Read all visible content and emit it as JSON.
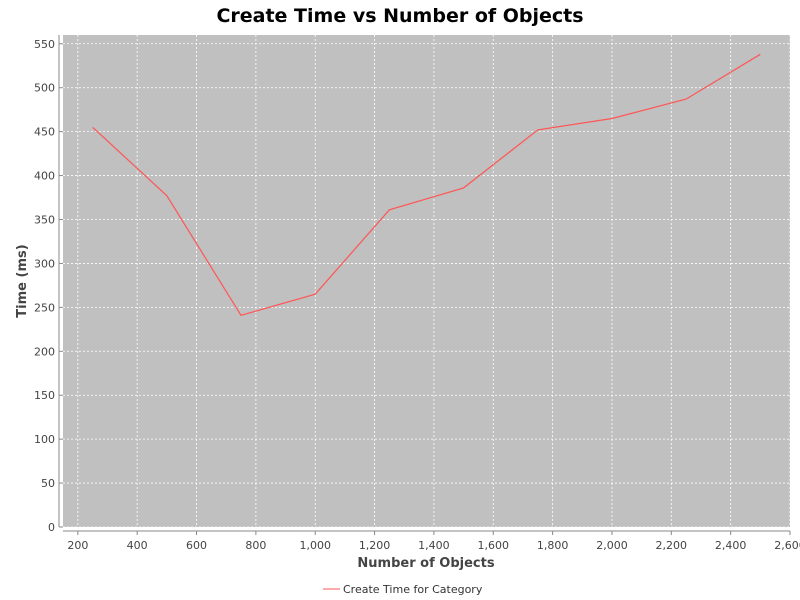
{
  "chart_data": {
    "type": "line",
    "title": "Create Time vs Number of Objects",
    "xlabel": "Number of Objects",
    "ylabel": "Time (ms)",
    "xlim": [
      150,
      2600
    ],
    "ylim": [
      0,
      560
    ],
    "xticks": [
      200,
      400,
      600,
      800,
      1000,
      1200,
      1400,
      1600,
      1800,
      2000,
      2200,
      2400,
      2600
    ],
    "xtick_labels": [
      "200",
      "400",
      "600",
      "800",
      "1,000",
      "1,200",
      "1,400",
      "1,600",
      "1,800",
      "2,000",
      "2,200",
      "2,400",
      "2,600"
    ],
    "yticks": [
      0,
      50,
      100,
      150,
      200,
      250,
      300,
      350,
      400,
      450,
      500,
      550
    ],
    "ytick_labels": [
      "0",
      "50",
      "100",
      "150",
      "200",
      "250",
      "300",
      "350",
      "400",
      "450",
      "500",
      "550"
    ],
    "grid": true,
    "legend_position": "bottom-center",
    "series": [
      {
        "name": "Create Time for Category",
        "color": "#ff5555",
        "x": [
          250,
          500,
          750,
          1000,
          1250,
          1500,
          1750,
          2000,
          2250,
          2500
        ],
        "y": [
          455,
          377,
          241,
          265,
          361,
          386,
          452,
          465,
          487,
          538
        ]
      }
    ]
  },
  "colors": {
    "plot_background": "#c0c0c0",
    "gridline": "#ffffff",
    "axis": "#888888"
  }
}
